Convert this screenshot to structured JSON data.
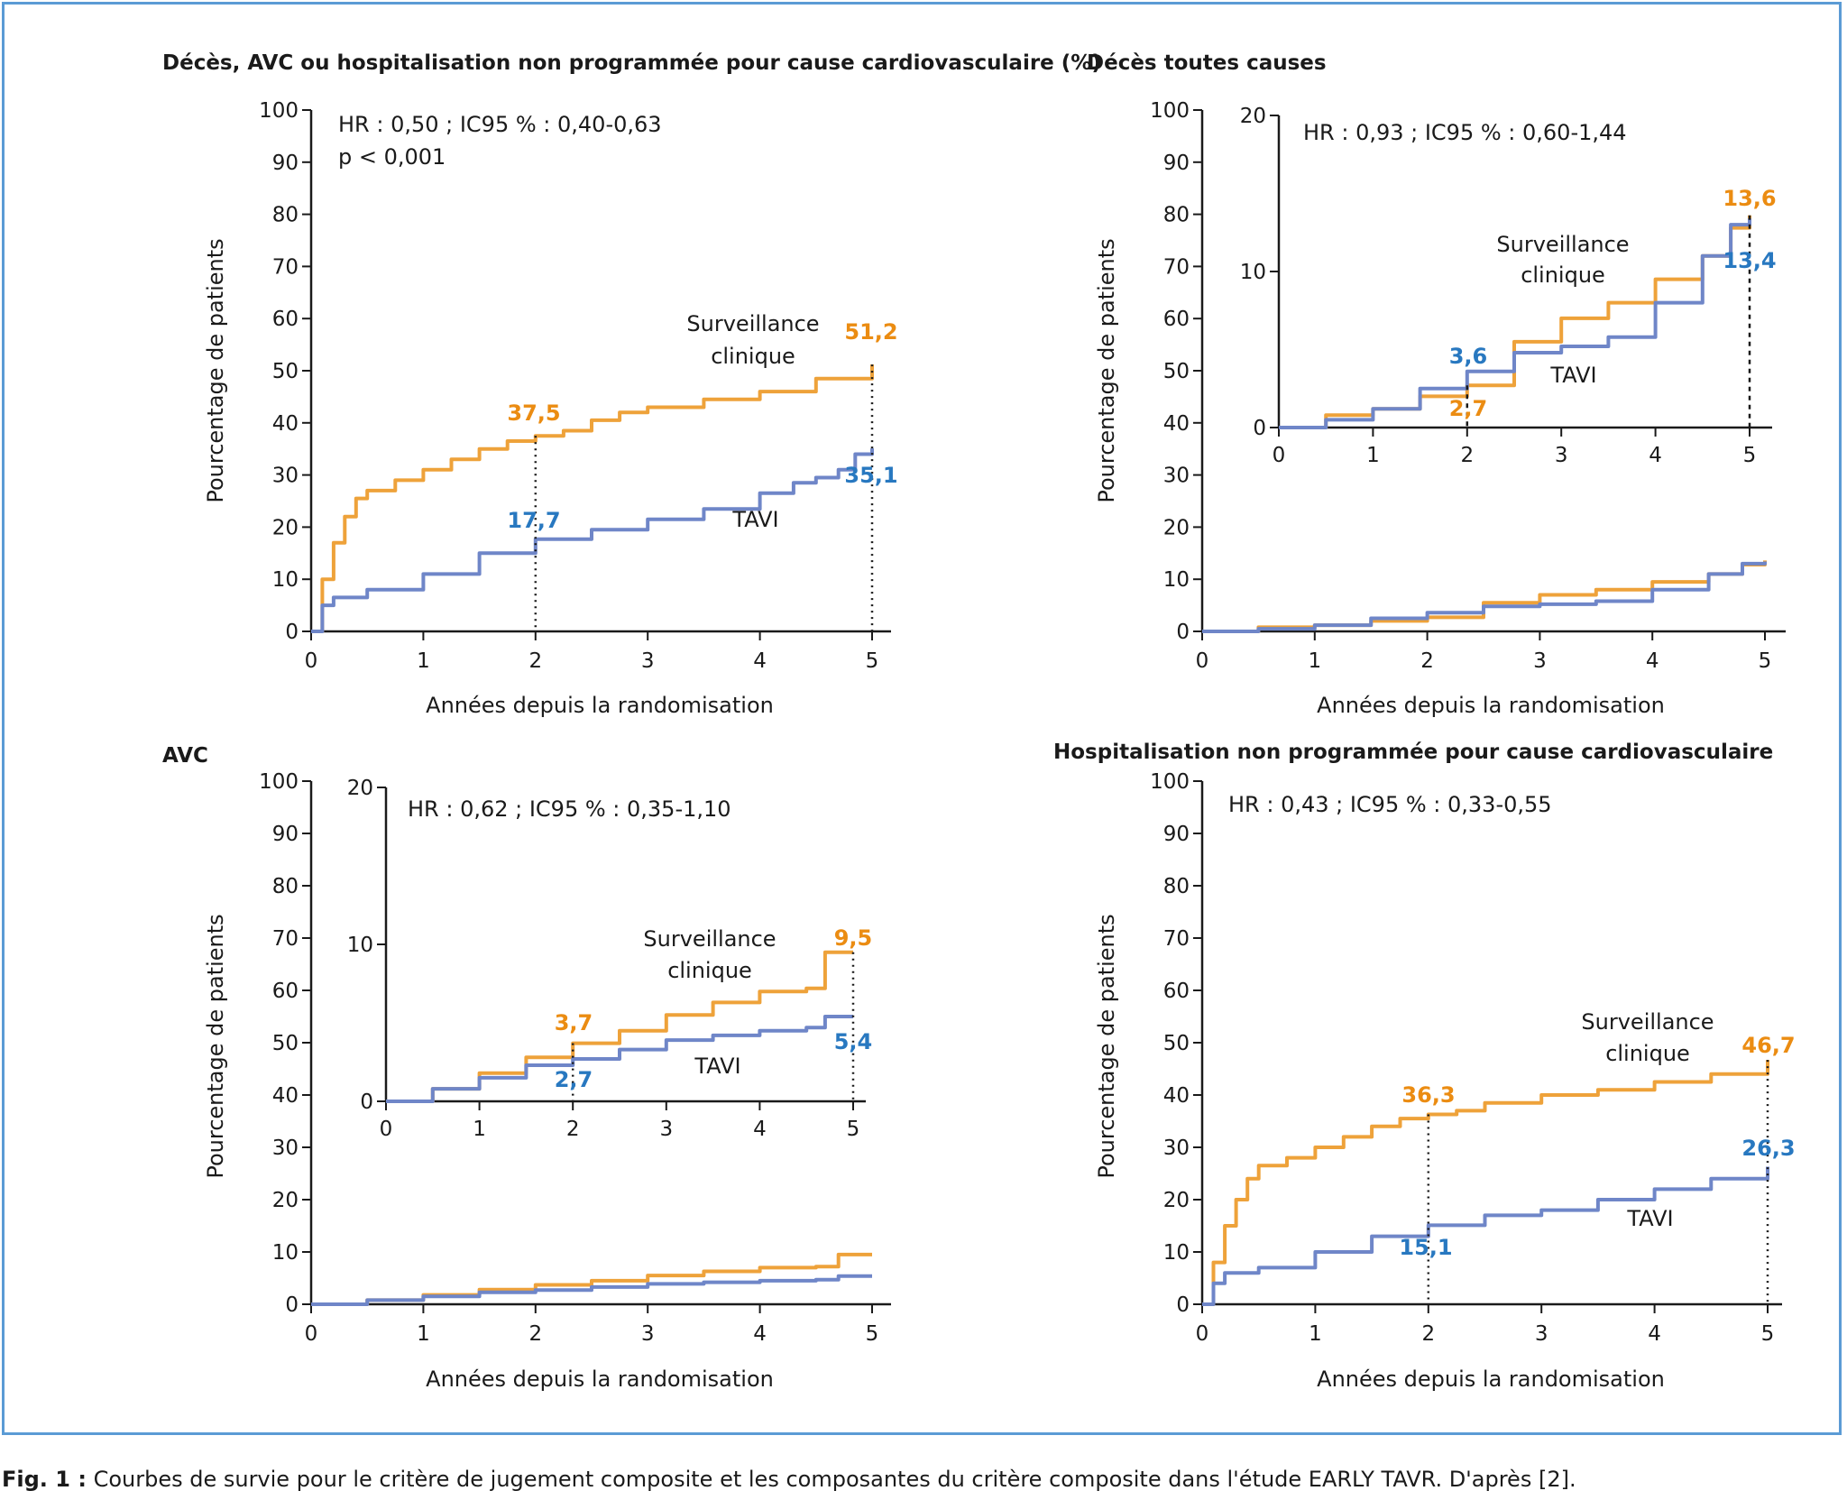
{
  "colors": {
    "orange": "#eea23a",
    "blue": "#6f86c8",
    "label_orange": "#eb8c12",
    "label_blue": "#2878c0",
    "frame": "#5b9bd5"
  },
  "caption": {
    "label": "Fig. 1 :",
    "text": " Courbes de survie pour le critère de jugement composite et les composantes du critère composite dans l'étude EARLY TAVR. D'après [2]."
  },
  "chart_data": [
    {
      "type": "line",
      "title": "Décès, AVC ou hospitalisation non programmée pour cause cardiovasculaire (%)",
      "xlabel": "Années depuis la randomisation",
      "ylabel": "Pourcentage de patients",
      "xlim": [
        0,
        5
      ],
      "ylim": [
        0,
        100
      ],
      "xticks": [
        "0",
        "1",
        "2",
        "3",
        "4",
        "5"
      ],
      "yticks": [
        "0",
        "10",
        "20",
        "30",
        "40",
        "50",
        "60",
        "70",
        "80",
        "90",
        "100"
      ],
      "stats": [
        "HR : 0,50 ; IC95 % : 0,40-0,63",
        "p < 0,001"
      ],
      "series": [
        {
          "name": "Surveillance clinique",
          "x": [
            0,
            0.1,
            0.2,
            0.3,
            0.4,
            0.5,
            0.75,
            1.0,
            1.25,
            1.5,
            1.75,
            2.0,
            2.25,
            2.5,
            2.75,
            3.0,
            3.5,
            4.0,
            4.5,
            5.0
          ],
          "y": [
            0,
            10,
            17,
            22,
            25.5,
            27,
            29,
            31,
            33,
            35,
            36.5,
            37.5,
            38.5,
            40.5,
            42,
            43,
            44.5,
            46,
            48.5,
            51.2
          ]
        },
        {
          "name": "TAVI",
          "x": [
            0,
            0.1,
            0.2,
            0.5,
            1.0,
            1.5,
            2.0,
            2.5,
            3.0,
            3.5,
            4.0,
            4.3,
            4.5,
            4.7,
            4.85,
            5.0
          ],
          "y": [
            0,
            5,
            6.5,
            8,
            11,
            15,
            17.7,
            19.5,
            21.5,
            23.5,
            26.5,
            28.5,
            29.5,
            31,
            34,
            35.1
          ]
        }
      ],
      "annotations": [
        {
          "text": "37,5",
          "series": 0,
          "x": 2
        },
        {
          "text": "17,7",
          "series": 1,
          "x": 2
        },
        {
          "text": "51,2",
          "series": 0,
          "x": 5
        },
        {
          "text": "35,1",
          "series": 1,
          "x": 5
        },
        {
          "text": "Surveillance",
          "label": true
        },
        {
          "text": "clinique",
          "label": true
        },
        {
          "text": "TAVI",
          "label": true
        }
      ]
    },
    {
      "type": "line",
      "title": "Décès toutes causes",
      "xlabel": "Années depuis la randomisation",
      "ylabel": "Pourcentage de patients",
      "xlim": [
        0,
        5
      ],
      "ylim": [
        0,
        100
      ],
      "xticks": [
        "0",
        "1",
        "2",
        "3",
        "4",
        "5"
      ],
      "yticks": [
        "0",
        "10",
        "20",
        "30",
        "40",
        "50",
        "60",
        "70",
        "80",
        "90",
        "100"
      ],
      "stats": [
        "HR : 0,93 ; IC95 % : 0,60-1,44"
      ],
      "series": [
        {
          "name": "Surveillance clinique",
          "x": [
            0,
            0.5,
            1.0,
            1.5,
            2.0,
            2.5,
            3.0,
            3.5,
            4.0,
            4.5,
            4.8,
            5.0
          ],
          "y": [
            0,
            0.8,
            1.2,
            2.0,
            2.7,
            5.5,
            7.0,
            8.0,
            9.5,
            11.0,
            12.8,
            13.6
          ]
        },
        {
          "name": "TAVI",
          "x": [
            0,
            0.5,
            1.0,
            1.5,
            2.0,
            2.5,
            3.0,
            3.5,
            4.0,
            4.5,
            4.8,
            5.0
          ],
          "y": [
            0,
            0.5,
            1.2,
            2.5,
            3.6,
            4.8,
            5.2,
            5.8,
            8.0,
            11.0,
            13.0,
            13.4
          ]
        }
      ],
      "inset": {
        "xlim": [
          0,
          5
        ],
        "ylim": [
          0,
          20
        ],
        "xticks": [
          "0",
          "1",
          "2",
          "3",
          "4",
          "5"
        ],
        "yticks": [
          "0",
          "10",
          "20"
        ]
      },
      "annotations": [
        {
          "text": "3,6",
          "series": 1,
          "x": 2
        },
        {
          "text": "2,7",
          "series": 0,
          "x": 2
        },
        {
          "text": "13,6",
          "series": 0,
          "x": 5
        },
        {
          "text": "13,4",
          "series": 1,
          "x": 5
        },
        {
          "text": "Surveillance",
          "label": true
        },
        {
          "text": "clinique",
          "label": true
        },
        {
          "text": "TAVI",
          "label": true
        }
      ]
    },
    {
      "type": "line",
      "title": "AVC",
      "xlabel": "Années depuis la randomisation",
      "ylabel": "Pourcentage de patients",
      "xlim": [
        0,
        5
      ],
      "ylim": [
        0,
        100
      ],
      "xticks": [
        "0",
        "1",
        "2",
        "3",
        "4",
        "5"
      ],
      "yticks": [
        "0",
        "10",
        "20",
        "30",
        "40",
        "50",
        "60",
        "70",
        "80",
        "90",
        "100"
      ],
      "stats": [
        "HR : 0,62 ; IC95 % : 0,35-1,10"
      ],
      "series": [
        {
          "name": "Surveillance clinique",
          "x": [
            0,
            0.5,
            1.0,
            1.5,
            2.0,
            2.5,
            3.0,
            3.5,
            4.0,
            4.5,
            4.7,
            5.0
          ],
          "y": [
            0,
            0.8,
            1.8,
            2.8,
            3.7,
            4.5,
            5.5,
            6.3,
            7.0,
            7.2,
            9.5,
            9.5
          ]
        },
        {
          "name": "TAVI",
          "x": [
            0,
            0.5,
            1.0,
            1.5,
            2.0,
            2.5,
            3.0,
            3.5,
            4.0,
            4.5,
            4.7,
            5.0
          ],
          "y": [
            0,
            0.8,
            1.5,
            2.3,
            2.7,
            3.3,
            3.9,
            4.2,
            4.5,
            4.7,
            5.4,
            5.4
          ]
        }
      ],
      "inset": {
        "xlim": [
          0,
          5
        ],
        "ylim": [
          0,
          20
        ],
        "xticks": [
          "0",
          "1",
          "2",
          "3",
          "4",
          "5"
        ],
        "yticks": [
          "0",
          "10",
          "20"
        ]
      },
      "annotations": [
        {
          "text": "3,7",
          "series": 0,
          "x": 2
        },
        {
          "text": "2,7",
          "series": 1,
          "x": 2
        },
        {
          "text": "9,5",
          "series": 0,
          "x": 5
        },
        {
          "text": "5,4",
          "series": 1,
          "x": 5
        },
        {
          "text": "Surveillance",
          "label": true
        },
        {
          "text": "clinique",
          "label": true
        },
        {
          "text": "TAVI",
          "label": true
        }
      ]
    },
    {
      "type": "line",
      "title": "Hospitalisation non programmée pour cause cardiovasculaire",
      "xlabel": "Années depuis la randomisation",
      "ylabel": "Pourcentage de patients",
      "xlim": [
        0,
        5
      ],
      "ylim": [
        0,
        100
      ],
      "xticks": [
        "0",
        "1",
        "2",
        "3",
        "4",
        "5"
      ],
      "yticks": [
        "0",
        "10",
        "20",
        "30",
        "40",
        "50",
        "60",
        "70",
        "80",
        "90",
        "100"
      ],
      "stats": [
        "HR : 0,43 ; IC95 % : 0,33-0,55"
      ],
      "series": [
        {
          "name": "Surveillance clinique",
          "x": [
            0,
            0.1,
            0.2,
            0.3,
            0.4,
            0.5,
            0.75,
            1.0,
            1.25,
            1.5,
            1.75,
            2.0,
            2.25,
            2.5,
            3.0,
            3.5,
            4.0,
            4.5,
            5.0
          ],
          "y": [
            0,
            8,
            15,
            20,
            24,
            26.5,
            28,
            30,
            32,
            34,
            35.5,
            36.3,
            37,
            38.5,
            40,
            41,
            42.5,
            44,
            46.7
          ]
        },
        {
          "name": "TAVI",
          "x": [
            0,
            0.1,
            0.2,
            0.5,
            1.0,
            1.5,
            2.0,
            2.5,
            3.0,
            3.5,
            4.0,
            4.5,
            5.0
          ],
          "y": [
            0,
            4,
            6,
            7,
            10,
            13,
            15.1,
            17,
            18,
            20,
            22,
            24,
            26.3
          ]
        }
      ],
      "annotations": [
        {
          "text": "36,3",
          "series": 0,
          "x": 2
        },
        {
          "text": "15,1",
          "series": 1,
          "x": 2
        },
        {
          "text": "46,7",
          "series": 0,
          "x": 5
        },
        {
          "text": "26,3",
          "series": 1,
          "x": 5
        },
        {
          "text": "Surveillance",
          "label": true
        },
        {
          "text": "clinique",
          "label": true
        },
        {
          "text": "TAVI",
          "label": true
        }
      ]
    }
  ]
}
